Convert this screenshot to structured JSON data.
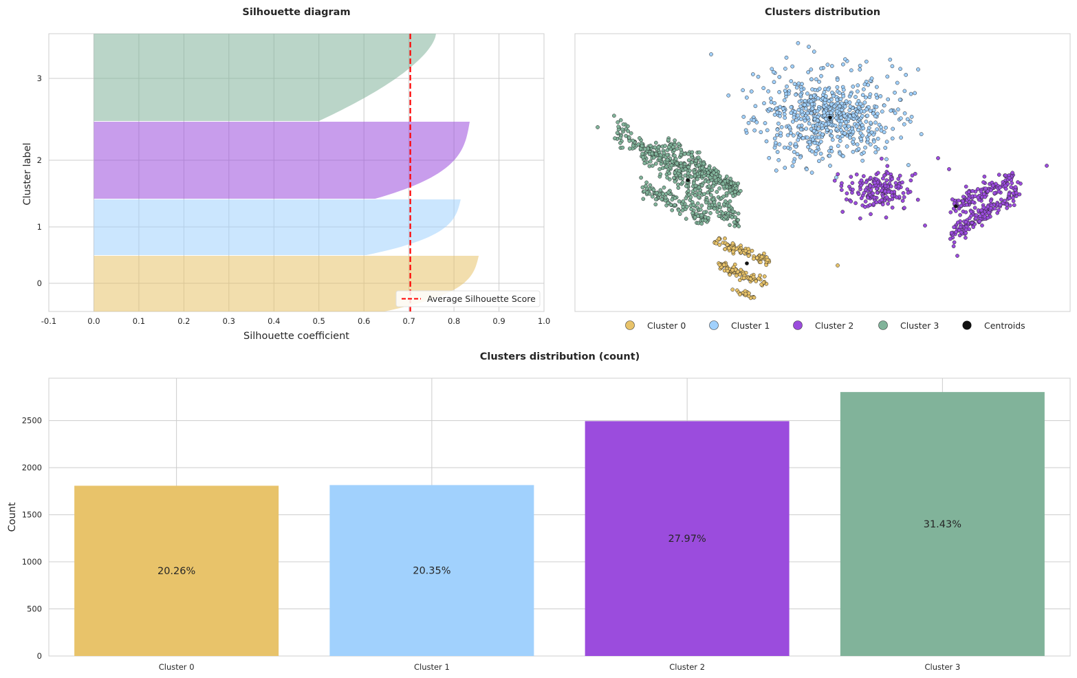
{
  "colors": {
    "cluster0": "#E8C36A",
    "cluster1": "#A1D1FD",
    "cluster2": "#9B4CDD",
    "cluster3": "#81B39A",
    "centroid": "#111111",
    "average_line": "#FF0000",
    "grid": "#CCCCCC"
  },
  "chart_data": [
    {
      "type": "area",
      "title": "Silhouette diagram",
      "xlabel": "Silhouette coefficient",
      "ylabel": "Cluster label",
      "xlim": [
        -0.1,
        1.0
      ],
      "xticks": [
        "-0.1",
        "0.0",
        "0.1",
        "0.2",
        "0.3",
        "0.4",
        "0.5",
        "0.6",
        "0.7",
        "0.8",
        "0.9",
        "1.0"
      ],
      "yticks": [
        "0",
        "1",
        "2",
        "3"
      ],
      "average_silhouette_score": 0.703,
      "legend": [
        "Average Silhouette Score"
      ],
      "legend_position": "lower right",
      "grid": true,
      "series": [
        {
          "name": "0",
          "color_key": "cluster0",
          "max_coefficient": 0.855,
          "count": 1808
        },
        {
          "name": "1",
          "color_key": "cluster1",
          "max_coefficient": 0.815,
          "count": 1815
        },
        {
          "name": "2",
          "color_key": "cluster2",
          "max_coefficient": 0.835,
          "count": 2494
        },
        {
          "name": "3",
          "color_key": "cluster3",
          "max_coefficient": 0.76,
          "count": 2803
        }
      ]
    },
    {
      "type": "scatter",
      "title": "Clusters distribution",
      "xlabel": "",
      "ylabel": "",
      "legend": [
        "Cluster 0",
        "Cluster 1",
        "Cluster 2",
        "Cluster 3",
        "Centroids"
      ],
      "legend_position": "below",
      "grid": false
    },
    {
      "type": "bar",
      "title": "Clusters distribution (count)",
      "xlabel": "",
      "ylabel": "Count",
      "categories": [
        "Cluster 0",
        "Cluster 1",
        "Cluster 2",
        "Cluster 3"
      ],
      "values": [
        1808,
        1815,
        2494,
        2803
      ],
      "labels": [
        "20.26%",
        "20.35%",
        "27.97%",
        "31.43%"
      ],
      "yticks": [
        "0",
        "500",
        "1000",
        "1500",
        "2000",
        "2500"
      ],
      "ylim": [
        0,
        2950
      ],
      "grid": true
    }
  ]
}
